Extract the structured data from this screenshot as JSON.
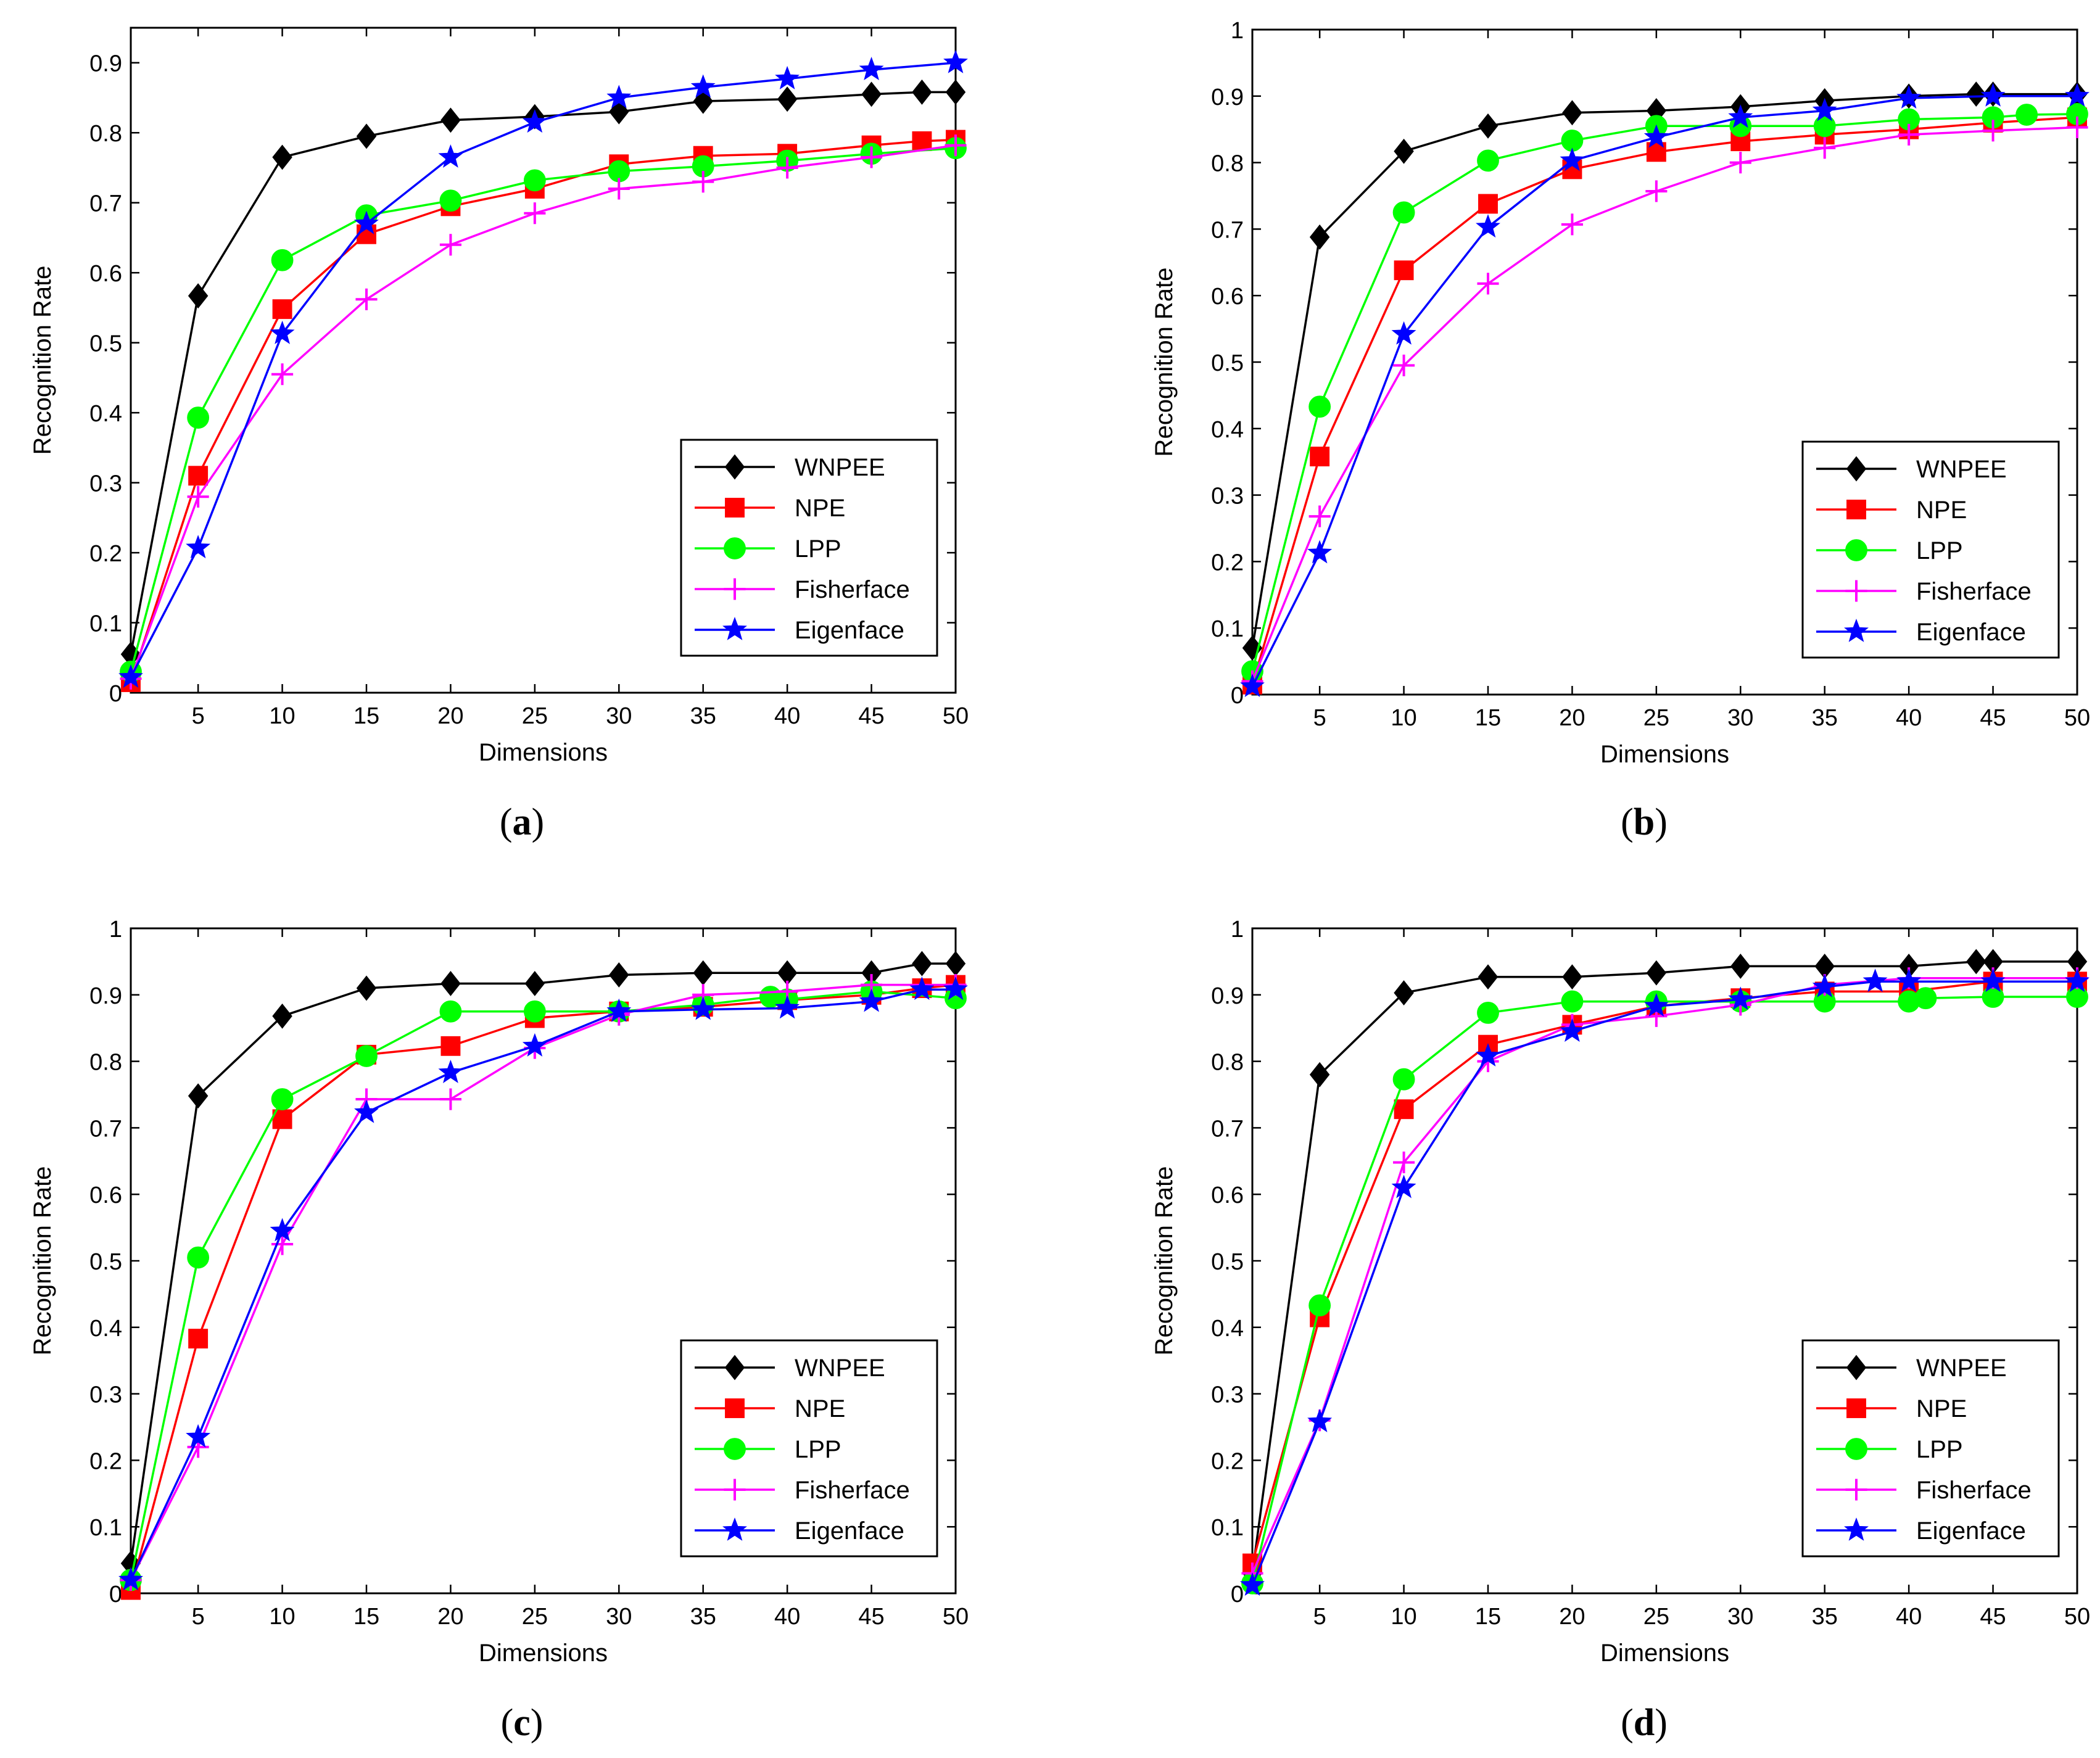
{
  "chart_data": [
    {
      "type": "line",
      "panel_label": "a",
      "title": "",
      "xlabel": "Dimensions",
      "ylabel": "Recognition Rate",
      "xlim": [
        1,
        50
      ],
      "ylim": [
        0,
        0.95
      ],
      "xticks": [
        5,
        10,
        15,
        20,
        25,
        30,
        35,
        40,
        45,
        50
      ],
      "yticks": [
        0,
        0.1,
        0.2,
        0.3,
        0.4,
        0.5,
        0.6,
        0.7,
        0.8,
        0.9
      ],
      "ytick_labels": [
        "0",
        "0.1",
        "0.2",
        "0.3",
        "0.4",
        "0.5",
        "0.6",
        "0.7",
        "0.8",
        "0.9"
      ],
      "legend_position": "bottom-right",
      "series": [
        {
          "name": "WNPEE",
          "color": "#000000",
          "marker": "diamond",
          "x": [
            1,
            5,
            10,
            15,
            20,
            25,
            30,
            35,
            40,
            45,
            48,
            50
          ],
          "y": [
            0.055,
            0.567,
            0.765,
            0.795,
            0.818,
            0.823,
            0.83,
            0.845,
            0.848,
            0.855,
            0.858,
            0.858
          ]
        },
        {
          "name": "NPE",
          "color": "#ff0000",
          "marker": "square",
          "x": [
            1,
            5,
            10,
            15,
            20,
            25,
            30,
            35,
            40,
            45,
            48,
            50
          ],
          "y": [
            0.015,
            0.31,
            0.548,
            0.655,
            0.695,
            0.72,
            0.755,
            0.767,
            0.77,
            0.782,
            0.788,
            0.79
          ]
        },
        {
          "name": "LPP",
          "color": "#00ff00",
          "marker": "circle",
          "x": [
            1,
            5,
            10,
            15,
            20,
            25,
            30,
            35,
            40,
            45,
            50
          ],
          "y": [
            0.03,
            0.393,
            0.618,
            0.682,
            0.703,
            0.732,
            0.745,
            0.752,
            0.76,
            0.77,
            0.778
          ]
        },
        {
          "name": "Fisherface",
          "color": "#ff00ff",
          "marker": "plus",
          "x": [
            1,
            5,
            10,
            15,
            20,
            25,
            30,
            35,
            40,
            45,
            50
          ],
          "y": [
            0.02,
            0.28,
            0.455,
            0.562,
            0.64,
            0.685,
            0.72,
            0.73,
            0.75,
            0.765,
            0.782
          ]
        },
        {
          "name": "Eigenface",
          "color": "#0000ff",
          "marker": "star",
          "x": [
            1,
            5,
            10,
            15,
            20,
            25,
            30,
            35,
            40,
            45,
            50
          ],
          "y": [
            0.022,
            0.207,
            0.513,
            0.67,
            0.765,
            0.815,
            0.85,
            0.865,
            0.877,
            0.89,
            0.9
          ]
        }
      ]
    },
    {
      "type": "line",
      "panel_label": "b",
      "title": "",
      "xlabel": "Dimensions",
      "ylabel": "Recognition Rate",
      "xlim": [
        1,
        50
      ],
      "ylim": [
        0,
        1
      ],
      "xticks": [
        5,
        10,
        15,
        20,
        25,
        30,
        35,
        40,
        45,
        50
      ],
      "yticks": [
        0,
        0.1,
        0.2,
        0.3,
        0.4,
        0.5,
        0.6,
        0.7,
        0.8,
        0.9,
        1
      ],
      "ytick_labels": [
        "0",
        "0.1",
        "0.2",
        "0.3",
        "0.4",
        "0.5",
        "0.6",
        "0.7",
        "0.8",
        "0.9",
        "1"
      ],
      "legend_position": "bottom-right",
      "series": [
        {
          "name": "WNPEE",
          "color": "#000000",
          "marker": "diamond",
          "x": [
            1,
            5,
            10,
            15,
            20,
            25,
            30,
            35,
            40,
            44,
            45,
            50
          ],
          "y": [
            0.07,
            0.688,
            0.817,
            0.855,
            0.875,
            0.878,
            0.884,
            0.893,
            0.9,
            0.903,
            0.903,
            0.903
          ]
        },
        {
          "name": "NPE",
          "color": "#ff0000",
          "marker": "square",
          "x": [
            1,
            5,
            10,
            15,
            20,
            25,
            30,
            35,
            40,
            45,
            50
          ],
          "y": [
            0.015,
            0.358,
            0.638,
            0.738,
            0.79,
            0.816,
            0.832,
            0.842,
            0.85,
            0.86,
            0.868
          ]
        },
        {
          "name": "LPP",
          "color": "#00ff00",
          "marker": "circle",
          "x": [
            1,
            5,
            10,
            15,
            20,
            25,
            30,
            35,
            40,
            45,
            47,
            50
          ],
          "y": [
            0.035,
            0.433,
            0.725,
            0.803,
            0.833,
            0.855,
            0.855,
            0.855,
            0.865,
            0.868,
            0.872,
            0.873
          ]
        },
        {
          "name": "Fisherface",
          "color": "#ff00ff",
          "marker": "plus",
          "x": [
            1,
            5,
            10,
            15,
            20,
            25,
            30,
            35,
            40,
            45,
            50
          ],
          "y": [
            0.02,
            0.268,
            0.495,
            0.618,
            0.707,
            0.757,
            0.8,
            0.822,
            0.842,
            0.848,
            0.853
          ]
        },
        {
          "name": "Eigenface",
          "color": "#0000ff",
          "marker": "star",
          "x": [
            1,
            5,
            10,
            15,
            20,
            25,
            30,
            35,
            40,
            45,
            50
          ],
          "y": [
            0.012,
            0.213,
            0.542,
            0.703,
            0.803,
            0.838,
            0.868,
            0.878,
            0.897,
            0.9,
            0.9
          ]
        }
      ]
    },
    {
      "type": "line",
      "panel_label": "c",
      "title": "",
      "xlabel": "Dimensions",
      "ylabel": "Recognition Rate",
      "xlim": [
        1,
        50
      ],
      "ylim": [
        0,
        1
      ],
      "xticks": [
        5,
        10,
        15,
        20,
        25,
        30,
        35,
        40,
        45,
        50
      ],
      "yticks": [
        0,
        0.1,
        0.2,
        0.3,
        0.4,
        0.5,
        0.6,
        0.7,
        0.8,
        0.9,
        1
      ],
      "ytick_labels": [
        "0",
        "0.1",
        "0.2",
        "0.3",
        "0.4",
        "0.5",
        "0.6",
        "0.7",
        "0.8",
        "0.9",
        "1"
      ],
      "legend_position": "bottom-right",
      "series": [
        {
          "name": "WNPEE",
          "color": "#000000",
          "marker": "diamond",
          "x": [
            1,
            5,
            10,
            15,
            20,
            25,
            30,
            35,
            40,
            45,
            48,
            50
          ],
          "y": [
            0.045,
            0.748,
            0.868,
            0.91,
            0.917,
            0.917,
            0.93,
            0.933,
            0.933,
            0.933,
            0.947,
            0.947
          ]
        },
        {
          "name": "NPE",
          "color": "#ff0000",
          "marker": "square",
          "x": [
            1,
            5,
            10,
            15,
            20,
            25,
            30,
            35,
            40,
            45,
            48,
            50
          ],
          "y": [
            0.005,
            0.383,
            0.713,
            0.81,
            0.823,
            0.865,
            0.875,
            0.882,
            0.892,
            0.9,
            0.91,
            0.915
          ]
        },
        {
          "name": "LPP",
          "color": "#00ff00",
          "marker": "circle",
          "x": [
            1,
            5,
            10,
            15,
            20,
            25,
            30,
            35,
            39,
            40,
            45,
            50
          ],
          "y": [
            0.02,
            0.505,
            0.743,
            0.808,
            0.875,
            0.875,
            0.875,
            0.885,
            0.897,
            0.893,
            0.905,
            0.895
          ]
        },
        {
          "name": "Fisherface",
          "color": "#ff00ff",
          "marker": "plus",
          "x": [
            1,
            5,
            10,
            15,
            20,
            25,
            30,
            35,
            40,
            45,
            50
          ],
          "y": [
            0.02,
            0.22,
            0.525,
            0.743,
            0.743,
            0.82,
            0.87,
            0.9,
            0.905,
            0.915,
            0.915
          ]
        },
        {
          "name": "Eigenface",
          "color": "#0000ff",
          "marker": "star",
          "x": [
            1,
            5,
            10,
            15,
            20,
            25,
            30,
            35,
            40,
            45,
            48,
            50
          ],
          "y": [
            0.02,
            0.235,
            0.545,
            0.723,
            0.783,
            0.823,
            0.875,
            0.878,
            0.88,
            0.89,
            0.908,
            0.908
          ]
        }
      ]
    },
    {
      "type": "line",
      "panel_label": "d",
      "title": "",
      "xlabel": "Dimensions",
      "ylabel": "Recognition Rate",
      "xlim": [
        1,
        50
      ],
      "ylim": [
        0,
        1
      ],
      "xticks": [
        5,
        10,
        15,
        20,
        25,
        30,
        35,
        40,
        45,
        50
      ],
      "yticks": [
        0,
        0.1,
        0.2,
        0.3,
        0.4,
        0.5,
        0.6,
        0.7,
        0.8,
        0.9,
        1
      ],
      "ytick_labels": [
        "0",
        "0.1",
        "0.2",
        "0.3",
        "0.4",
        "0.5",
        "0.6",
        "0.7",
        "0.8",
        "0.9",
        "1"
      ],
      "legend_position": "bottom-right",
      "series": [
        {
          "name": "WNPEE",
          "color": "#000000",
          "marker": "diamond",
          "x": [
            1,
            5,
            10,
            15,
            20,
            25,
            30,
            35,
            40,
            44,
            45,
            50
          ],
          "y": [
            0.03,
            0.78,
            0.903,
            0.927,
            0.927,
            0.933,
            0.943,
            0.943,
            0.943,
            0.95,
            0.95,
            0.95
          ]
        },
        {
          "name": "NPE",
          "color": "#ff0000",
          "marker": "square",
          "x": [
            1,
            5,
            10,
            15,
            20,
            25,
            30,
            35,
            40,
            45,
            50
          ],
          "y": [
            0.045,
            0.415,
            0.728,
            0.825,
            0.855,
            0.883,
            0.895,
            0.905,
            0.905,
            0.92,
            0.92
          ]
        },
        {
          "name": "LPP",
          "color": "#00ff00",
          "marker": "circle",
          "x": [
            1,
            5,
            10,
            15,
            20,
            25,
            30,
            35,
            40,
            41,
            45,
            50
          ],
          "y": [
            0.015,
            0.433,
            0.773,
            0.873,
            0.89,
            0.89,
            0.89,
            0.89,
            0.89,
            0.895,
            0.897,
            0.897
          ]
        },
        {
          "name": "Fisherface",
          "color": "#ff00ff",
          "marker": "plus",
          "x": [
            1,
            5,
            10,
            15,
            20,
            25,
            30,
            35,
            40,
            45,
            50
          ],
          "y": [
            0.03,
            0.26,
            0.648,
            0.8,
            0.855,
            0.868,
            0.885,
            0.915,
            0.925,
            0.925,
            0.925
          ]
        },
        {
          "name": "Eigenface",
          "color": "#0000ff",
          "marker": "star",
          "x": [
            1,
            5,
            10,
            15,
            20,
            25,
            30,
            35,
            38,
            40,
            45,
            50
          ],
          "y": [
            0.012,
            0.258,
            0.61,
            0.808,
            0.845,
            0.883,
            0.893,
            0.912,
            0.92,
            0.92,
            0.92,
            0.92
          ]
        }
      ]
    }
  ]
}
